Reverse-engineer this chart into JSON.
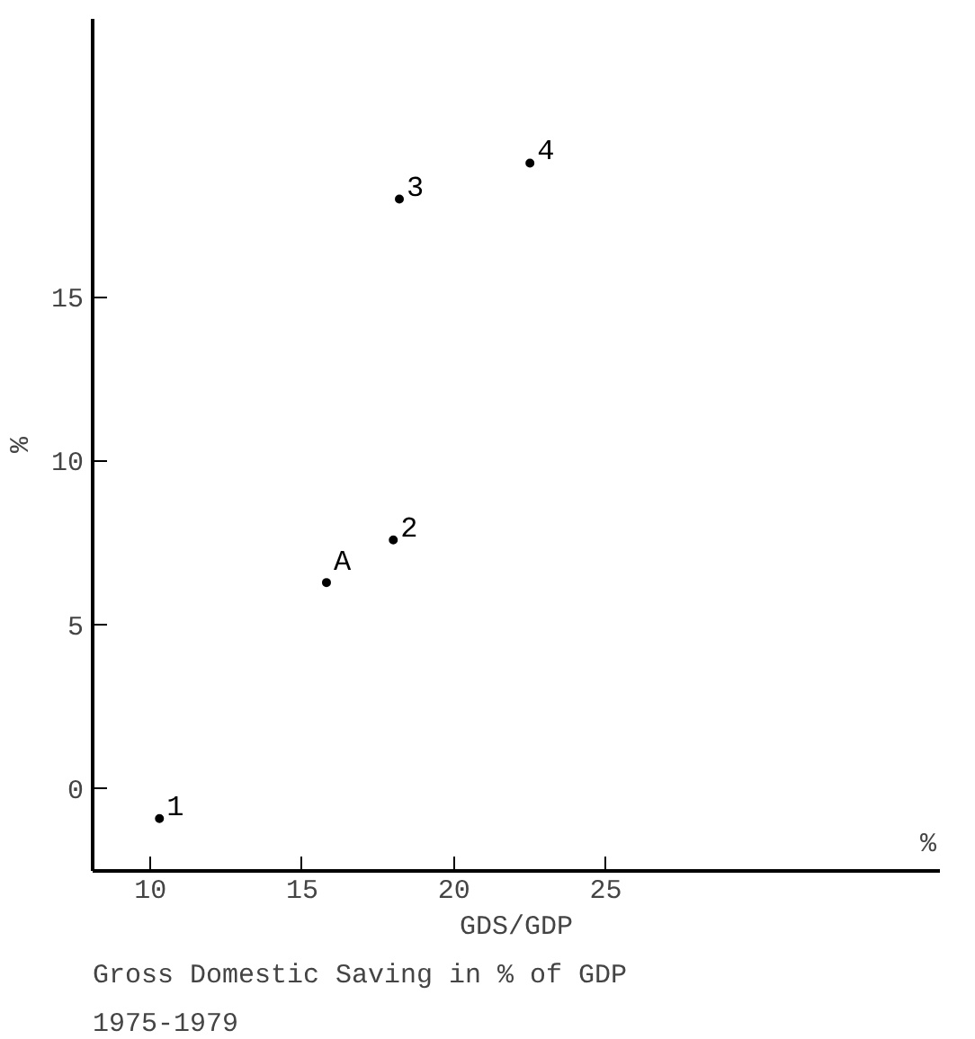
{
  "chart_data": {
    "type": "scatter",
    "marker": "circle",
    "xlabel": "GDS/GDP",
    "ylabel": "%",
    "series": [
      {
        "name": "1",
        "color": "#000000",
        "x": [
          10.3
        ],
        "values": [
          -0.9
        ]
      },
      {
        "name": "A",
        "color": "#000000",
        "x": [
          15.8
        ],
        "values": [
          6.3
        ]
      },
      {
        "name": "2",
        "color": "#000000",
        "x": [
          18.0
        ],
        "values": [
          7.6
        ]
      },
      {
        "name": "3",
        "color": "#000000",
        "x": [
          18.2
        ],
        "values": [
          18.0
        ]
      },
      {
        "name": "4",
        "color": "#000000",
        "x": [
          22.5
        ],
        "values": [
          19.1
        ]
      }
    ],
    "xlim": [
      8.1,
      36
    ],
    "ylim": [
      -2.5,
      23.5
    ],
    "xticks": [
      10,
      15,
      20,
      25
    ],
    "yticks": [
      15,
      10,
      5,
      0
    ],
    "annotations": [
      "%",
      "Gross Domestic Saving in % of GDP",
      "1975-1979"
    ]
  }
}
